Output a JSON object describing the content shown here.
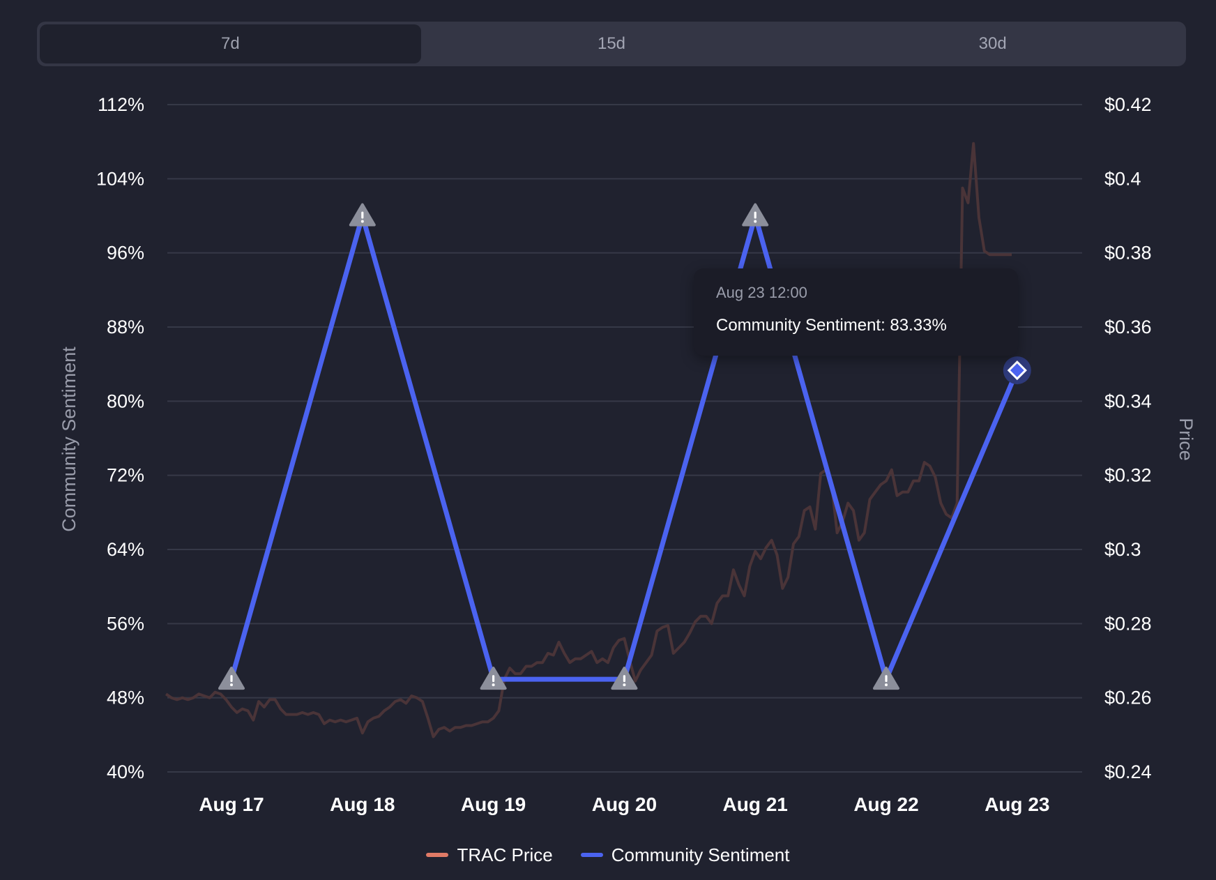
{
  "tabs": [
    {
      "label": "7d",
      "active": true
    },
    {
      "label": "15d",
      "active": false
    },
    {
      "label": "30d",
      "active": false
    }
  ],
  "tooltip": {
    "date": "Aug 23 12:00",
    "line": "Community Sentiment: 83.33%"
  },
  "legend": [
    {
      "label": "TRAC Price",
      "color": "#e07a66"
    },
    {
      "label": "Community Sentiment",
      "color": "#4b63f0"
    }
  ],
  "chart_data": {
    "type": "line",
    "x_categories": [
      "Aug 17",
      "Aug 18",
      "Aug 19",
      "Aug 20",
      "Aug 21",
      "Aug 22",
      "Aug 23"
    ],
    "highlighted_category": "Aug 23",
    "highlight_color": "#4b63f0",
    "y_left": {
      "label": "Community Sentiment",
      "ticks": [
        "112%",
        "104%",
        "96%",
        "88%",
        "80%",
        "72%",
        "64%",
        "56%",
        "48%",
        "40%"
      ],
      "range": [
        40,
        112
      ]
    },
    "y_right": {
      "label": "Price",
      "ticks": [
        "$0.42",
        "$0.4",
        "$0.38",
        "$0.36",
        "$0.34",
        "$0.32",
        "$0.3",
        "$0.28",
        "$0.26",
        "$0.24"
      ],
      "range": [
        0.24,
        0.42
      ]
    },
    "grid": true,
    "legend_position": "bottom-center",
    "series": [
      {
        "name": "Community Sentiment",
        "axis": "left",
        "color": "#4b63f0",
        "x": [
          "Aug 17",
          "Aug 18",
          "Aug 19",
          "Aug 20",
          "Aug 21",
          "Aug 22",
          "Aug 23"
        ],
        "values": [
          50,
          100,
          50,
          50,
          100,
          50,
          83.33
        ]
      },
      {
        "name": "TRAC Price",
        "axis": "right",
        "color": "#4a3438",
        "x_start": "Aug 16 12:00",
        "x_step_hours": 1,
        "values": [
          0.261,
          0.26,
          0.2595,
          0.26,
          0.2595,
          0.26,
          0.261,
          0.2605,
          0.26,
          0.2615,
          0.261,
          0.2595,
          0.2575,
          0.256,
          0.257,
          0.2565,
          0.254,
          0.259,
          0.2575,
          0.2595,
          0.2595,
          0.257,
          0.2555,
          0.2555,
          0.2555,
          0.256,
          0.2555,
          0.256,
          0.2555,
          0.253,
          0.254,
          0.2535,
          0.254,
          0.2535,
          0.254,
          0.2545,
          0.2505,
          0.2535,
          0.2545,
          0.255,
          0.2565,
          0.2575,
          0.259,
          0.2595,
          0.2585,
          0.2605,
          0.26,
          0.259,
          0.2545,
          0.2495,
          0.2515,
          0.252,
          0.251,
          0.252,
          0.252,
          0.2525,
          0.2525,
          0.253,
          0.2535,
          0.2535,
          0.2545,
          0.2565,
          0.265,
          0.268,
          0.2665,
          0.2665,
          0.2685,
          0.2685,
          0.2695,
          0.2695,
          0.272,
          0.2715,
          0.275,
          0.272,
          0.2695,
          0.2705,
          0.2705,
          0.2715,
          0.2725,
          0.2695,
          0.2705,
          0.2695,
          0.2735,
          0.2755,
          0.276,
          0.27,
          0.2645,
          0.2675,
          0.2695,
          0.2715,
          0.278,
          0.279,
          0.2795,
          0.272,
          0.2735,
          0.275,
          0.2775,
          0.2805,
          0.282,
          0.282,
          0.28,
          0.2855,
          0.2875,
          0.2875,
          0.2945,
          0.2905,
          0.2875,
          0.2955,
          0.2995,
          0.2975,
          0.3005,
          0.3025,
          0.2985,
          0.2895,
          0.2925,
          0.3015,
          0.3035,
          0.3105,
          0.3115,
          0.3055,
          0.3205,
          0.3215,
          0.3175,
          0.3045,
          0.3075,
          0.3125,
          0.3105,
          0.3025,
          0.3045,
          0.3135,
          0.3155,
          0.3175,
          0.3185,
          0.3215,
          0.3145,
          0.3155,
          0.3155,
          0.3185,
          0.3185,
          0.3235,
          0.3225,
          0.3195,
          0.3125,
          0.3095,
          0.3085,
          0.3125,
          0.3975,
          0.3935,
          0.4095,
          0.3895,
          0.3805,
          0.3795,
          0.3795,
          0.3795,
          0.3795,
          0.3795
        ]
      }
    ],
    "markers": [
      {
        "series": "Community Sentiment",
        "x": "Aug 17",
        "y": 50,
        "symbol": "warning-triangle"
      },
      {
        "series": "Community Sentiment",
        "x": "Aug 18",
        "y": 100,
        "symbol": "warning-triangle"
      },
      {
        "series": "Community Sentiment",
        "x": "Aug 19",
        "y": 50,
        "symbol": "warning-triangle"
      },
      {
        "series": "Community Sentiment",
        "x": "Aug 20",
        "y": 50,
        "symbol": "warning-triangle"
      },
      {
        "series": "Community Sentiment",
        "x": "Aug 21",
        "y": 100,
        "symbol": "warning-triangle"
      },
      {
        "series": "Community Sentiment",
        "x": "Aug 22",
        "y": 50,
        "symbol": "warning-triangle"
      },
      {
        "series": "Community Sentiment",
        "x": "Aug 23",
        "y": 83.33,
        "symbol": "diamond",
        "highlighted": true
      }
    ]
  }
}
